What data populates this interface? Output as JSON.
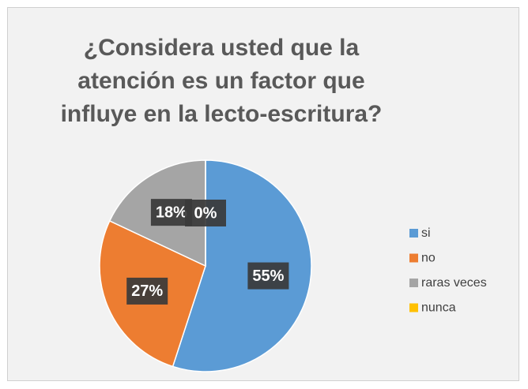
{
  "chart_data": {
    "type": "pie",
    "title": "¿Considera usted que la atención es un factor que influye en la lecto-escritura?",
    "categories": [
      "si",
      "no",
      "raras veces",
      "nunca"
    ],
    "values": [
      55,
      27,
      18,
      0
    ],
    "value_labels": [
      "55%",
      "27%",
      "18%",
      "0%"
    ],
    "colors": [
      "#5b9bd5",
      "#ed7d31",
      "#a5a5a5",
      "#ffc000"
    ],
    "legend": "right"
  }
}
